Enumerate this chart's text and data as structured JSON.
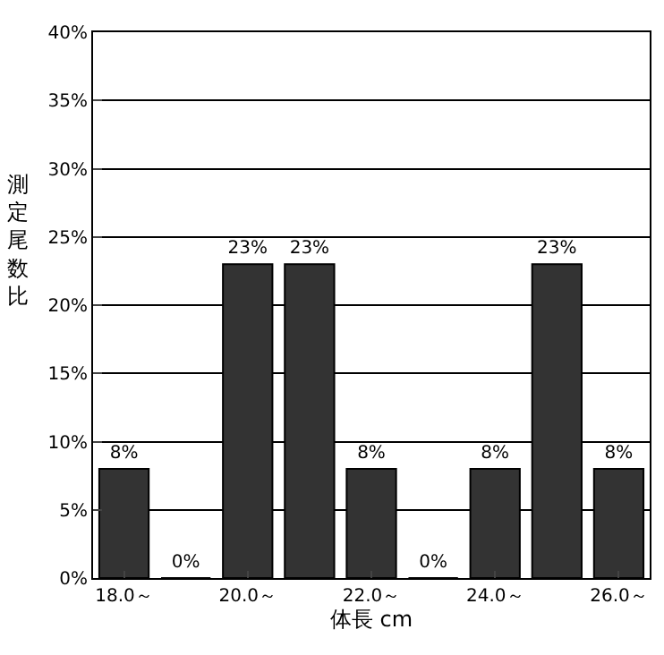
{
  "chart_data": {
    "type": "bar",
    "categories": [
      "18.0～",
      null,
      "20.0～",
      null,
      "22.0～",
      null,
      "24.0～",
      null,
      "26.0～"
    ],
    "values": [
      8,
      0,
      23,
      23,
      8,
      0,
      8,
      23,
      8
    ],
    "value_labels": [
      "8%",
      "0%",
      "23%",
      "23%",
      "8%",
      "0%",
      "8%",
      "23%",
      "8%"
    ],
    "color": "#333333",
    "xlabel": "体長 cm",
    "ylabel": "測定尾数比",
    "ylim": [
      0,
      40
    ],
    "yticks": [
      {
        "value": 0,
        "label": "0%"
      },
      {
        "value": 5,
        "label": "5%"
      },
      {
        "value": 10,
        "label": "10%"
      },
      {
        "value": 15,
        "label": "15%"
      },
      {
        "value": 20,
        "label": "20%"
      },
      {
        "value": 25,
        "label": "25%"
      },
      {
        "value": 30,
        "label": "30%"
      },
      {
        "value": 35,
        "label": "35%"
      },
      {
        "value": 40,
        "label": "40%"
      }
    ],
    "grid": "y"
  }
}
